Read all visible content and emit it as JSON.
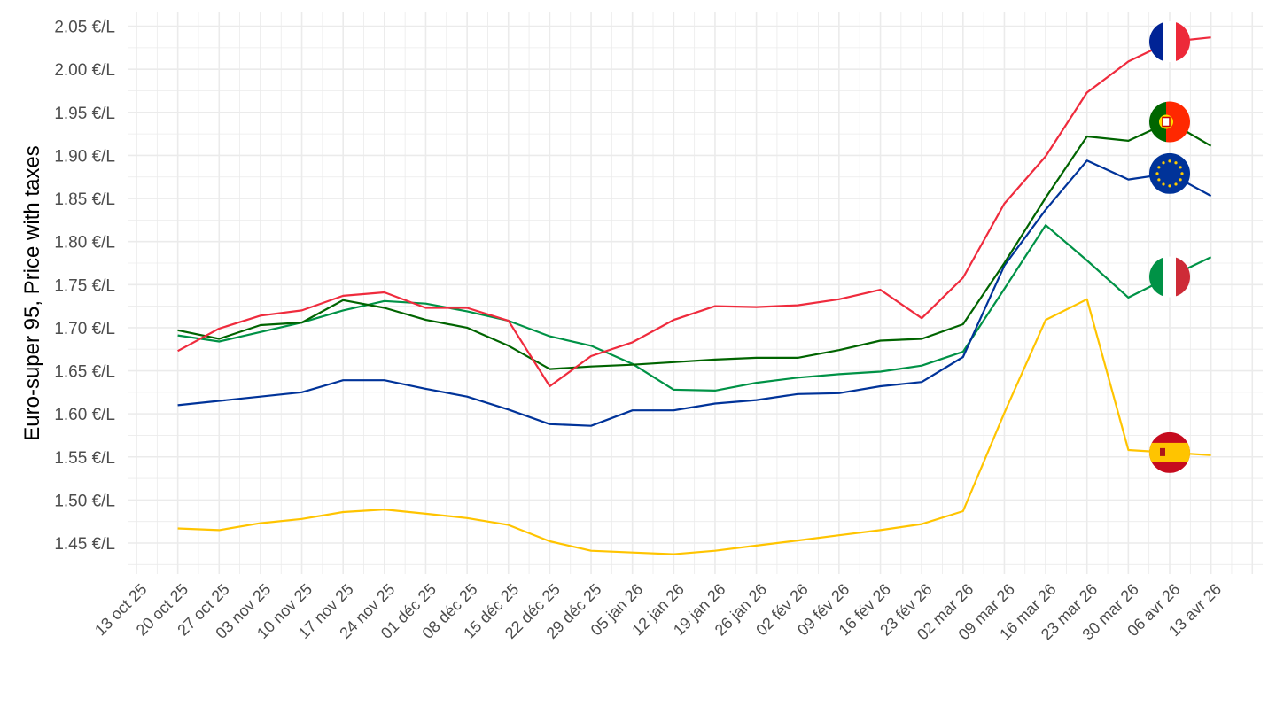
{
  "chart_data": {
    "type": "line",
    "title": "",
    "xlabel": "",
    "ylabel": "Euro-super 95, Price with taxes",
    "ylim": [
      1.414,
      2.066
    ],
    "y_ticks": [
      "1.45 €/L",
      "1.50 €/L",
      "1.55 €/L",
      "1.60 €/L",
      "1.65 €/L",
      "1.70 €/L",
      "1.75 €/L",
      "1.80 €/L",
      "1.85 €/L",
      "1.90 €/L",
      "1.95 €/L",
      "2.00 €/L",
      "2.05 €/L"
    ],
    "y_tick_values": [
      1.45,
      1.5,
      1.55,
      1.6,
      1.65,
      1.7,
      1.75,
      1.8,
      1.85,
      1.9,
      1.95,
      2.0,
      2.05
    ],
    "x_ticks": [
      "13 oct 25",
      "20 oct 25",
      "27 oct 25",
      "03 nov 25",
      "10 nov 25",
      "17 nov 25",
      "24 nov 25",
      "01 déc 25",
      "08 déc 25",
      "15 déc 25",
      "22 déc 25",
      "29 déc 25",
      "05 jan 26",
      "12 jan 26",
      "19 jan 26",
      "26 jan 26",
      "02 fév 26",
      "09 fév 26",
      "16 fév 26",
      "23 fév 26",
      "02 mar 26",
      "09 mar 26",
      "16 mar 26",
      "23 mar 26",
      "30 mar 26",
      "06 avr 26",
      "13 avr 26"
    ],
    "x": [
      "20 oct 25",
      "27 oct 25",
      "03 nov 25",
      "10 nov 25",
      "17 nov 25",
      "24 nov 25",
      "01 déc 25",
      "08 déc 25",
      "15 déc 25",
      "22 déc 25",
      "29 déc 25",
      "05 jan 26",
      "12 jan 26",
      "19 jan 26",
      "26 jan 26",
      "02 fév 26",
      "09 fév 26",
      "16 fév 26",
      "23 fév 26",
      "02 mar 26",
      "09 mar 26",
      "16 mar 26",
      "23 mar 26",
      "30 mar 26",
      "06 avr 26",
      "13 avr 26"
    ],
    "grid": true,
    "legend": "flags at 06 avr 26",
    "series": [
      {
        "flag": "france",
        "color": "#EF2B3D",
        "values": [
          1.673,
          1.699,
          1.714,
          1.72,
          1.737,
          1.741,
          1.723,
          1.723,
          1.708,
          1.632,
          1.667,
          1.683,
          1.709,
          1.725,
          1.724,
          1.726,
          1.733,
          1.744,
          1.711,
          1.758,
          1.844,
          1.899,
          1.973,
          2.009,
          2.032,
          2.037
        ]
      },
      {
        "flag": "portugal",
        "color": "#006400",
        "values": [
          1.697,
          1.687,
          1.703,
          1.706,
          1.732,
          1.723,
          1.709,
          1.7,
          1.679,
          1.652,
          1.655,
          1.657,
          1.66,
          1.663,
          1.665,
          1.665,
          1.674,
          1.685,
          1.687,
          1.704,
          1.775,
          1.851,
          1.922,
          1.917,
          1.939,
          1.911
        ]
      },
      {
        "flag": "eu",
        "color": "#003399",
        "values": [
          1.61,
          1.615,
          1.62,
          1.625,
          1.639,
          1.639,
          1.629,
          1.62,
          1.605,
          1.588,
          1.586,
          1.604,
          1.604,
          1.612,
          1.616,
          1.623,
          1.624,
          1.632,
          1.637,
          1.666,
          1.772,
          1.837,
          1.894,
          1.872,
          1.879,
          1.853
        ]
      },
      {
        "flag": "italy",
        "color": "#009246",
        "values": [
          1.691,
          1.684,
          1.695,
          1.706,
          1.72,
          1.731,
          1.728,
          1.719,
          1.708,
          1.69,
          1.679,
          1.658,
          1.628,
          1.627,
          1.636,
          1.642,
          1.646,
          1.649,
          1.656,
          1.672,
          1.745,
          1.819,
          1.778,
          1.735,
          1.759,
          1.782
        ]
      },
      {
        "flag": "spain",
        "color": "#FFC400",
        "values": [
          1.467,
          1.465,
          1.473,
          1.478,
          1.486,
          1.489,
          1.484,
          1.479,
          1.471,
          1.452,
          1.441,
          1.439,
          1.437,
          1.441,
          1.447,
          1.453,
          1.459,
          1.465,
          1.472,
          1.487,
          1.601,
          1.709,
          1.733,
          1.558,
          1.555,
          1.552
        ]
      }
    ]
  }
}
